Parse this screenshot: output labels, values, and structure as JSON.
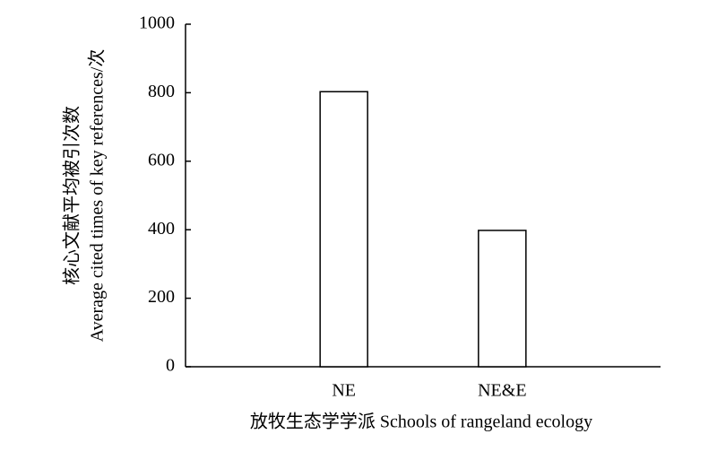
{
  "chart_data": {
    "type": "bar",
    "y_label": [
      "核心文献平均被引次数",
      "Average cited times of key references/次"
    ],
    "x_label": "放牧生态学学派 Schools of rangeland ecology",
    "categories": [
      "NE",
      "NE&E"
    ],
    "values": [
      803,
      398
    ],
    "color": "#ffffff",
    "edge_color": "#000000",
    "ylim": [
      0,
      1000
    ],
    "yticks": [
      0,
      200,
      400,
      600,
      800,
      1000
    ],
    "grid": false
  }
}
